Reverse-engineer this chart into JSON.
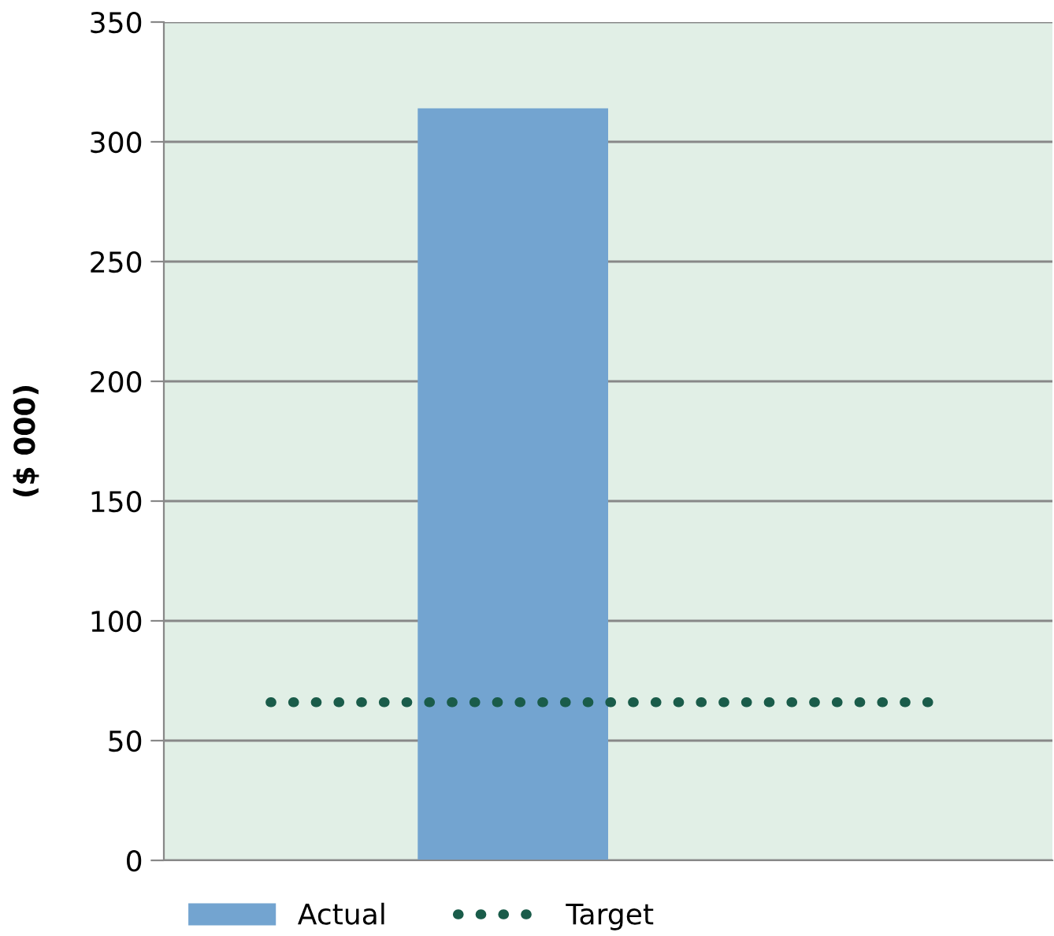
{
  "chart_data": {
    "type": "bar",
    "ylabel": "($ 000)",
    "categories": [
      null
    ],
    "series": [
      {
        "name": "Actual",
        "color": "#73a4d0",
        "values": [
          314
        ]
      }
    ],
    "ref_lines": [
      {
        "axis": "y",
        "value": 66,
        "label": "Target",
        "color": "#1a5c4a",
        "line_style": "dotted"
      }
    ],
    "ylim": [
      0,
      350
    ],
    "yticks": [
      0,
      50,
      100,
      150,
      200,
      250,
      300,
      350
    ],
    "grid": "y",
    "legend": "bottom",
    "tick_labels": "y"
  }
}
